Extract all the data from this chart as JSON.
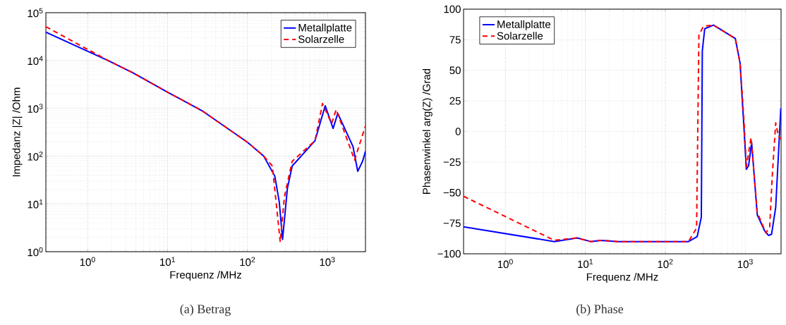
{
  "chart_data": [
    {
      "type": "line",
      "xlabel": "Frequenz /MHz",
      "ylabel": "Impedanz |Z| /Ohm",
      "log": "xy",
      "grid": true,
      "legend": "top right",
      "xlim": [
        0.3,
        3000
      ],
      "ylim": [
        1,
        100000
      ],
      "xticks": [
        {
          "value": 1,
          "label": "10$^{0}$"
        },
        {
          "value": 10,
          "label": "10$^{1}$"
        },
        {
          "value": 100,
          "label": "10$^{2}$"
        },
        {
          "value": 1000,
          "label": "10$^{3}$"
        }
      ],
      "yticks": [
        {
          "value": 1,
          "label": "10$^{0}$"
        },
        {
          "value": 10,
          "label": "10$^{1}$"
        },
        {
          "value": 100,
          "label": "10$^{2}$"
        },
        {
          "value": 1000,
          "label": "10$^{3}$"
        },
        {
          "value": 10000,
          "label": "10$^{4}$"
        },
        {
          "value": 100000,
          "label": "10$^{5}$"
        }
      ],
      "annotations": [
        "(a)  Betrag"
      ],
      "series": [
        {
          "name": "Metallplatte",
          "color": "#0000ff",
          "line_style": "solid",
          "x": [
            0.3,
            1.8,
            3.7,
            10.4,
            27,
            100,
            160,
            220,
            250,
            275,
            316,
            363,
            700,
            940,
            1180,
            1350,
            2090,
            2400,
            2760,
            3000
          ],
          "values": [
            39000,
            10000,
            5500,
            2100,
            890,
            195,
            100,
            38,
            11,
            1.8,
            21,
            62,
            210,
            1130,
            380,
            780,
            160,
            48,
            78,
            126
          ]
        },
        {
          "name": "Solarzelle",
          "color": "#ff0000",
          "line_style": "dashed",
          "x": [
            0.3,
            1.8,
            3.7,
            10.4,
            27,
            100,
            160,
            205,
            257,
            290,
            363,
            700,
            870,
            1130,
            1290,
            2190,
            3000
          ],
          "values": [
            51000,
            10000,
            5500,
            2100,
            890,
            195,
            100,
            62,
            1.6,
            14,
            78,
            210,
            1260,
            480,
            940,
            83,
            430
          ]
        }
      ]
    },
    {
      "type": "line",
      "xlabel": "Frequenz /MHz",
      "ylabel": "Phasenwinkel arg(Z) /Grad",
      "log": "x",
      "grid": true,
      "legend": "top left",
      "xlim": [
        0.3,
        2800
      ],
      "ylim": [
        -100,
        100
      ],
      "xticks": [
        {
          "value": 1,
          "label": "10$^{0}$"
        },
        {
          "value": 10,
          "label": "10$^{1}$"
        },
        {
          "value": 100,
          "label": "10$^{2}$"
        },
        {
          "value": 1000,
          "label": "10$^{3}$"
        }
      ],
      "yticks": [
        {
          "value": -100,
          "label": "−100"
        },
        {
          "value": -75,
          "label": "−75"
        },
        {
          "value": -50,
          "label": "−50"
        },
        {
          "value": -25,
          "label": "−25"
        },
        0,
        25,
        50,
        75,
        100
      ],
      "annotations": [
        "(b)  Phase"
      ],
      "series": [
        {
          "name": "Metallplatte",
          "color": "#0000ff",
          "line_style": "solid",
          "x": [
            0.3,
            4.1,
            7.9,
            11.7,
            15.5,
            25.6,
            195,
            250,
            282,
            290,
            311,
            400,
            750,
            860,
            960,
            1030,
            1100,
            1200,
            1410,
            1740,
            1950,
            2130,
            2400,
            2780
          ],
          "values": [
            -78,
            -90,
            -87,
            -90,
            -89,
            -90,
            -90,
            -86,
            -70,
            66,
            84,
            87,
            76,
            56,
            4,
            -31,
            -28,
            -9,
            -68,
            -81,
            -85,
            -84,
            -62,
            19
          ]
        },
        {
          "name": "Solarzelle",
          "color": "#ff0000",
          "line_style": "dashed",
          "x": [
            0.3,
            4.1,
            7.9,
            11.7,
            15.5,
            25.6,
            195,
            246,
            263,
            300,
            400,
            750,
            860,
            960,
            1030,
            1180,
            1410,
            1810,
            2020,
            2170,
            2400,
            2600,
            2800
          ],
          "values": [
            -53,
            -89,
            -87,
            -90,
            -89,
            -90,
            -90,
            -79,
            79,
            86,
            87,
            76,
            56,
            10,
            -29,
            -5,
            -66,
            -83,
            -78,
            -37,
            7,
            -4,
            -6
          ]
        }
      ]
    }
  ]
}
